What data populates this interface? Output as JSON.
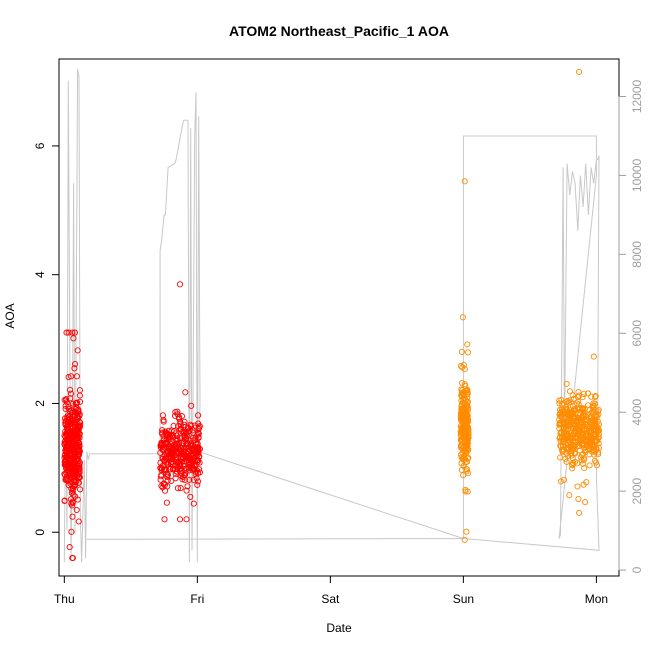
{
  "chart_data": {
    "type": "scatter",
    "title": "ATOM2 Northeast_Pacific_1 AOA",
    "xlabel": "Date",
    "ylabel": "AOA",
    "xlim": [
      -0.04,
      4.17
    ],
    "ylim": [
      -0.68,
      7.35
    ],
    "y2lim": [
      -150,
      12950
    ],
    "x_ticks": [
      {
        "value": 0,
        "label": "Thu"
      },
      {
        "value": 1,
        "label": "Fri"
      },
      {
        "value": 2,
        "label": "Sat"
      },
      {
        "value": 3,
        "label": "Sun"
      },
      {
        "value": 4,
        "label": "Mon"
      }
    ],
    "y_ticks": [
      0,
      2,
      4,
      6
    ],
    "y2_ticks": [
      0,
      2000,
      4000,
      6000,
      8000,
      10000,
      12000
    ],
    "grid": false,
    "colors": {
      "series_red": "#ff0000",
      "series_orange": "#ff8c00",
      "altitude_line": "#c8c8c8",
      "right_axis": "#9e9e9e"
    },
    "series": [
      {
        "marker": "circle-open",
        "color": "#ff0000",
        "clusters": [
          {
            "x": [
              0.0,
              0.12
            ],
            "center": 1.3,
            "spread": 0.55,
            "min": -0.4,
            "max": 3.1,
            "n": 380
          },
          {
            "x": [
              0.72,
              1.02
            ],
            "center": 1.25,
            "spread": 0.35,
            "min": 0.2,
            "max": 3.85,
            "n": 360
          }
        ]
      },
      {
        "marker": "circle-open",
        "color": "#ff8c00",
        "clusters": [
          {
            "x": [
              2.98,
              3.04
            ],
            "center": 1.65,
            "spread": 0.45,
            "min": -0.12,
            "max": 5.45,
            "n": 220
          },
          {
            "x": [
              3.72,
              4.02
            ],
            "center": 1.6,
            "spread": 0.35,
            "min": 0.3,
            "max": 7.15,
            "n": 420
          }
        ]
      }
    ],
    "altitude_line": {
      "axis": "right",
      "x": [
        0.0,
        0.01,
        0.02,
        0.03,
        0.05,
        0.06,
        0.07,
        0.08,
        0.1,
        0.11,
        0.12,
        0.13,
        0.15,
        0.16,
        0.17,
        0.18,
        0.19,
        0.2,
        0.72,
        0.72,
        0.73,
        0.75,
        0.76,
        0.78,
        0.83,
        0.84,
        0.89,
        0.9,
        0.92,
        0.93,
        0.94,
        0.95,
        0.96,
        0.98,
        0.99,
        1.0,
        1.01,
        1.02,
        1.01,
        3.0,
        3.0,
        3.05,
        3.1,
        4.0,
        4.0,
        3.72,
        3.73,
        3.75,
        3.76,
        3.78,
        3.8,
        3.82,
        3.84,
        3.86,
        3.88,
        3.9,
        3.92,
        3.94,
        3.96,
        3.98,
        4.0,
        4.01,
        4.02,
        4.01,
        4.0,
        4.02,
        3.0,
        0.17,
        0.17
      ],
      "y": [
        200,
        4000,
        1000,
        12400,
        300,
        2500,
        9800,
        900,
        12700,
        12500,
        1500,
        200,
        2800,
        300,
        3000,
        2800,
        2950,
        2950,
        2950,
        8100,
        8300,
        9000,
        9000,
        10200,
        10300,
        10400,
        11300,
        11400,
        11400,
        11400,
        200,
        11200,
        500,
        11000,
        12100,
        200,
        11500,
        4200,
        3000,
        800,
        11000,
        11000,
        11000,
        11000,
        10000,
        800,
        900,
        10200,
        3400,
        10300,
        9500,
        10100,
        9800,
        8600,
        10000,
        9200,
        10300,
        9000,
        10200,
        9800,
        10400,
        10400,
        10500,
        4000,
        2400,
        500,
        800,
        780,
        780
      ]
    }
  }
}
